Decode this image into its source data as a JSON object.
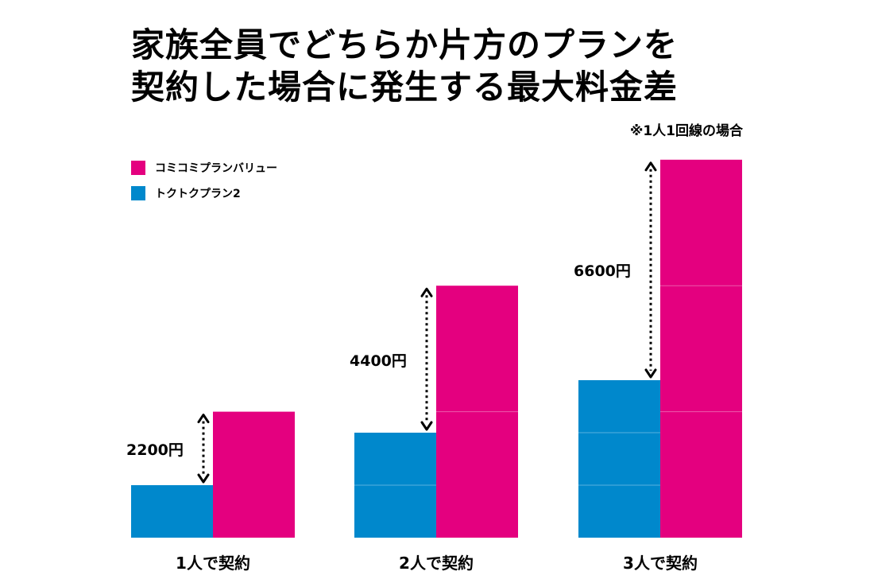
{
  "title": {
    "line1": "家族全員でどちらか片方のプランを",
    "line2": "契約した場合に発生する最大料金差"
  },
  "note": "※1人1回線の場合",
  "legend": {
    "items": [
      {
        "label": "コミコミプランバリュー",
        "color": "#e4007f"
      },
      {
        "label": "トクトクプラン2",
        "color": "#0088cc"
      }
    ]
  },
  "chart_data": {
    "type": "bar",
    "title": "家族全員でどちらか片方のプランを契約した場合に発生する最大料金差",
    "categories": [
      "1人で契約",
      "2人で契約",
      "3人で契約"
    ],
    "series": [
      {
        "name": "トクトクプラン2",
        "color": "#0088cc",
        "values": [
          1,
          2,
          3
        ]
      },
      {
        "name": "コミコミプランバリュー",
        "color": "#e4007f",
        "values": [
          2.4,
          4.8,
          7.2
        ]
      }
    ],
    "differences": [
      "2200円",
      "4400円",
      "6600円"
    ],
    "ylim": [
      0,
      7.2
    ]
  },
  "diff_labels": [
    "2200円",
    "4400円",
    "6600円"
  ],
  "category_labels": [
    "1人で契約",
    "2人で契約",
    "3人で契約"
  ]
}
